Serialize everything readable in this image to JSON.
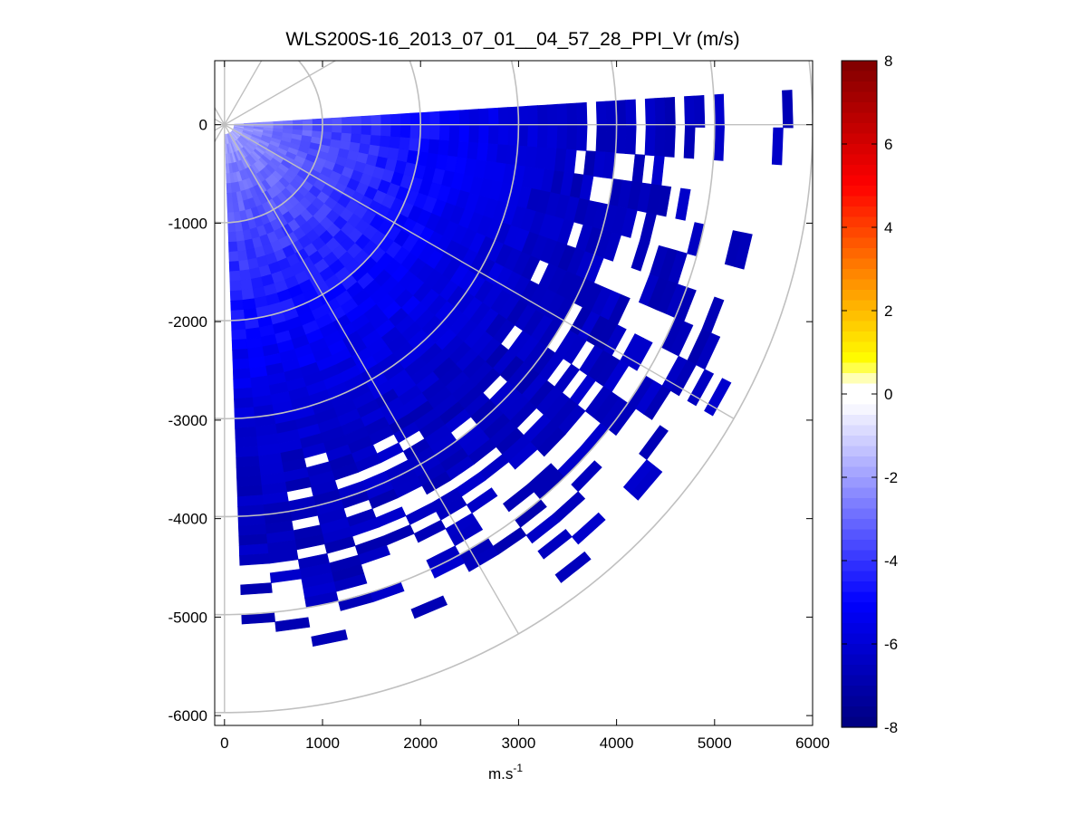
{
  "chart_data": {
    "type": "heatmap",
    "subtype": "polar-ppi-sector",
    "title": "WLS200S-16_2013_07_01__04_57_28_PPI_Vr (m/s)",
    "xlabel": "m.s",
    "xlabel_superscript": "-1",
    "ylabel": "",
    "xlim": [
      -100,
      6000
    ],
    "ylim": [
      -6100,
      650
    ],
    "x_ticks": [
      0,
      1000,
      2000,
      3000,
      4000,
      5000,
      6000
    ],
    "x_tick_labels": [
      "0",
      "1000",
      "2000",
      "3000",
      "4000",
      "5000",
      "6000"
    ],
    "y_ticks": [
      0,
      -1000,
      -2000,
      -3000,
      -4000,
      -5000,
      -6000
    ],
    "y_tick_labels": [
      "0",
      "-1000",
      "-2000",
      "-3000",
      "-4000",
      "-5000",
      "-6000"
    ],
    "grid": "polar",
    "polar_grid": {
      "range_rings": [
        1000,
        2000,
        3000,
        4000,
        5000,
        6000
      ],
      "spoke_angles_deg": [
        0,
        30,
        60,
        90,
        120,
        150,
        180,
        210,
        240,
        270,
        300,
        330
      ]
    },
    "scan": {
      "azimuth_start_deg": 3.5,
      "azimuth_end_deg": -88,
      "max_range_m": 5900,
      "unit": "m/s",
      "radial_velocity_near": -1.5,
      "radial_velocity_mid": -5.0,
      "radial_velocity_far": -6.5
    },
    "colorbar": {
      "min": -8,
      "max": 8,
      "ticks": [
        8,
        6,
        4,
        2,
        0,
        -2,
        -4,
        -6,
        -8
      ],
      "tick_labels": [
        "8",
        "6",
        "4",
        "2",
        "0",
        "-2",
        "-4",
        "-6",
        "-8"
      ],
      "colormap": "blue-white-yellow-red",
      "colors": {
        "min": "#00007f",
        "neg_mid": "#0000ff",
        "near_zero": "#ffffff",
        "pos_low": "#ffff00",
        "pos_mid": "#ff7f00",
        "pos_high": "#ff0000",
        "max": "#7f0000"
      }
    },
    "grid_color": "#c0c0c0"
  }
}
